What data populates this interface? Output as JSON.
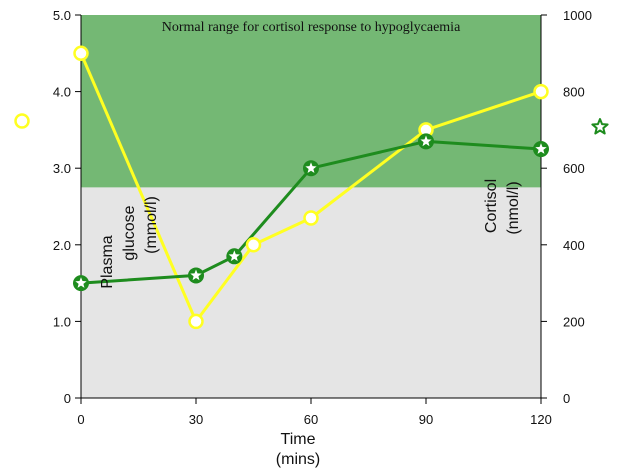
{
  "chart_data": {
    "type": "line",
    "title": "",
    "annotation": "Normal range for cortisol response to hypoglycaemia",
    "x": [
      0,
      30,
      40,
      45,
      60,
      90,
      120
    ],
    "x_ticks": [
      "0",
      "30",
      "60",
      "90",
      "120"
    ],
    "x_tick_values": [
      0,
      30,
      60,
      90,
      120
    ],
    "xlim": [
      0,
      120
    ],
    "xlabel": {
      "line1": "Time",
      "line2": "(mins)"
    },
    "y_left": {
      "label": {
        "line1": "Plasma",
        "line2": "glucose",
        "line3": "(mmol/l)"
      },
      "ylim": [
        0,
        5
      ],
      "ticks": [
        "0",
        "1.0",
        "2.0",
        "3.0",
        "4.0",
        "5.0"
      ],
      "tick_values": [
        0,
        1,
        2,
        3,
        4,
        5
      ]
    },
    "y_right": {
      "label": {
        "line1": "Cortisol",
        "line2": "(nmol/l)"
      },
      "ylim": [
        0,
        1000
      ],
      "ticks": [
        "0",
        "200",
        "400",
        "600",
        "800",
        "1000"
      ],
      "tick_values": [
        0,
        200,
        400,
        600,
        800,
        1000
      ]
    },
    "normal_range_right": [
      550,
      1000
    ],
    "grid": false,
    "legend": "markers only at left and right edges",
    "series": [
      {
        "axis": "left",
        "marker": "circle",
        "color": "#ffff22",
        "x": [
          0,
          30,
          45,
          60,
          90,
          120
        ],
        "values": [
          4.5,
          1.0,
          2.0,
          2.35,
          3.5,
          4.0
        ]
      },
      {
        "axis": "right",
        "marker": "star",
        "color": "#1e8c1e",
        "x": [
          0,
          30,
          40,
          60,
          90,
          120
        ],
        "values": [
          300,
          320,
          370,
          600,
          670,
          650
        ]
      }
    ],
    "colors": {
      "band": "#74b874",
      "background": "#e5e5e5",
      "axis": "#000000"
    }
  }
}
